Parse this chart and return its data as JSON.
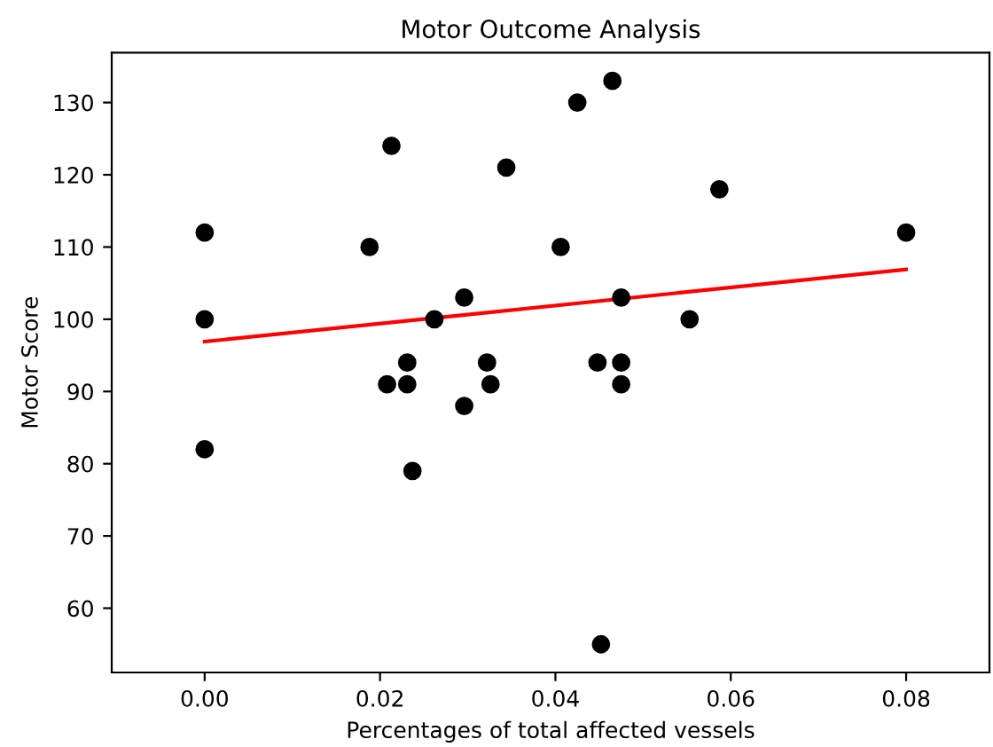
{
  "chart_data": {
    "type": "scatter",
    "title": "Motor Outcome Analysis",
    "xlabel": "Percentages of total affected vessels",
    "ylabel": "Motor Score",
    "xlim": [
      -0.0106,
      0.0895
    ],
    "ylim": [
      51.1,
      136.9
    ],
    "xticks": [
      {
        "value": 0,
        "label": "0.00"
      },
      {
        "value": 0.02,
        "label": "0.02"
      },
      {
        "value": 0.04,
        "label": "0.04"
      },
      {
        "value": 0.06,
        "label": "0.06"
      },
      {
        "value": 0.08,
        "label": "0.08"
      }
    ],
    "yticks": [
      60,
      70,
      80,
      90,
      100,
      110,
      120,
      130
    ],
    "grid": false,
    "series": [
      {
        "color": "#000000",
        "marker": "circle",
        "x": [
          0,
          0,
          0,
          0.0213,
          0.0344,
          0.0188,
          0.0296,
          0.0262,
          0.0231,
          0.0322,
          0.0208,
          0.0231,
          0.0326,
          0.0296,
          0.0237,
          0.0465,
          0.0425,
          0.0587,
          0.08,
          0.0406,
          0.0475,
          0.0553,
          0.0448,
          0.0475,
          0.0475,
          0.0452
        ],
        "values": [
          112,
          100,
          82,
          124,
          121,
          110,
          103,
          100,
          94,
          94,
          91,
          91,
          91,
          88,
          79,
          133,
          130,
          118,
          112,
          110,
          103,
          100,
          94,
          94,
          91,
          55
        ]
      },
      {
        "type": "line",
        "color": "#ff0000",
        "marker": "none",
        "x": [
          0,
          0.08
        ],
        "values": [
          96.9,
          106.9
        ]
      }
    ]
  }
}
